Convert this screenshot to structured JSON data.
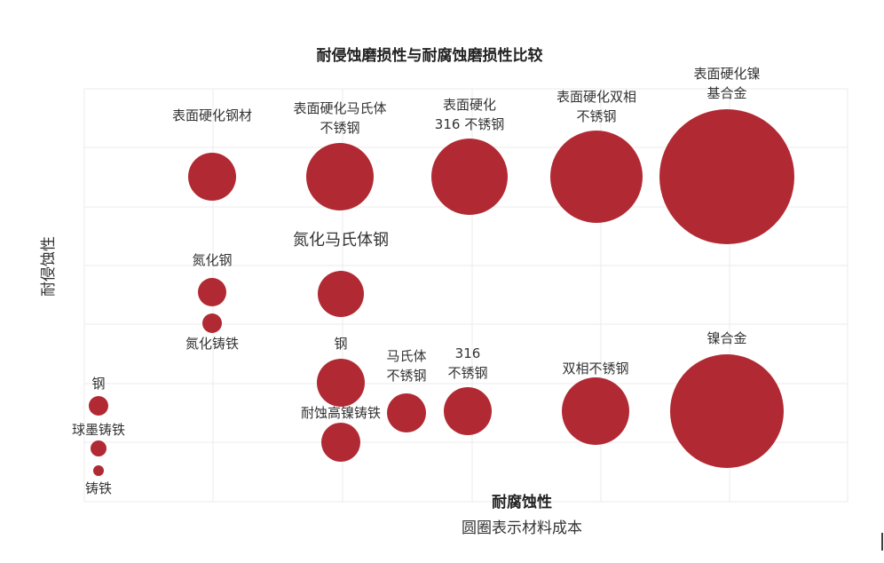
{
  "chart_data": {
    "type": "scatter",
    "title": "耐侵蚀磨损性与耐腐蚀磨损性比较",
    "xlabel": "耐腐蚀性",
    "xlabel_sub": "圆圈表示材料成本",
    "ylabel": "耐侵蚀性",
    "grid": true,
    "bubble_color": "#b12a33",
    "points": [
      {
        "label": [
          "表面硬化钢材"
        ],
        "x": 2.0,
        "y": 8.0,
        "size": 27,
        "label_pos": "above",
        "big": false
      },
      {
        "label": [
          "表面硬化马氏体",
          "不锈钢"
        ],
        "x": 3.0,
        "y": 8.0,
        "size": 38,
        "label_pos": "above",
        "big": false
      },
      {
        "label": [
          "表面硬化",
          "316 不锈钢"
        ],
        "x": 4.0,
        "y": 8.0,
        "size": 43,
        "label_pos": "above",
        "big": false
      },
      {
        "label": [
          "表面硬化双相",
          "不锈钢"
        ],
        "x": 5.0,
        "y": 8.0,
        "size": 52,
        "label_pos": "above",
        "big": false
      },
      {
        "label": [
          "表面硬化镍",
          "基合金"
        ],
        "x": 6.0,
        "y": 8.0,
        "size": 76,
        "label_pos": "above",
        "big": false
      },
      {
        "label": [
          "氮化马氏体钢"
        ],
        "x": 3.0,
        "y": 6.0,
        "size": 26,
        "label_pos": "above",
        "big": true
      },
      {
        "label": [
          "氮化钢"
        ],
        "x": 2.0,
        "y": 6.0,
        "size": 16,
        "label_pos": "above",
        "big": false
      },
      {
        "label": [
          "氮化铸铁"
        ],
        "x": 2.0,
        "y": 5.5,
        "size": 11,
        "label_pos": "below",
        "big": false
      },
      {
        "label": [
          "钢"
        ],
        "x": 3.0,
        "y": 4.5,
        "size": 27,
        "label_pos": "above",
        "big": false
      },
      {
        "label": [
          "马氏体",
          "不锈钢"
        ],
        "x": 3.5,
        "y": 4.0,
        "size": 22,
        "label_pos": "above",
        "big": false
      },
      {
        "label": [
          "316",
          "不锈钢"
        ],
        "x": 4.0,
        "y": 4.0,
        "size": 27,
        "label_pos": "above",
        "big": false
      },
      {
        "label": [
          "双相不锈钢"
        ],
        "x": 5.0,
        "y": 4.0,
        "size": 38,
        "label_pos": "above",
        "big": false
      },
      {
        "label": [
          "镍合金"
        ],
        "x": 6.0,
        "y": 4.0,
        "size": 64,
        "label_pos": "above",
        "big": false
      },
      {
        "label": [
          "耐蚀高镍铸铁"
        ],
        "x": 3.0,
        "y": 3.5,
        "size": 22,
        "label_pos": "above",
        "big": false
      },
      {
        "label": [
          "钢"
        ],
        "x": 1.0,
        "y": 4.0,
        "size": 11,
        "label_pos": "above",
        "big": false
      },
      {
        "label": [
          "球墨铸铁"
        ],
        "x": 1.0,
        "y": 3.5,
        "size": 9,
        "label_pos": "above",
        "big": false
      },
      {
        "label": [
          "铸铁"
        ],
        "x": 1.0,
        "y": 3.0,
        "size": 6,
        "label_pos": "below",
        "big": false
      }
    ]
  }
}
